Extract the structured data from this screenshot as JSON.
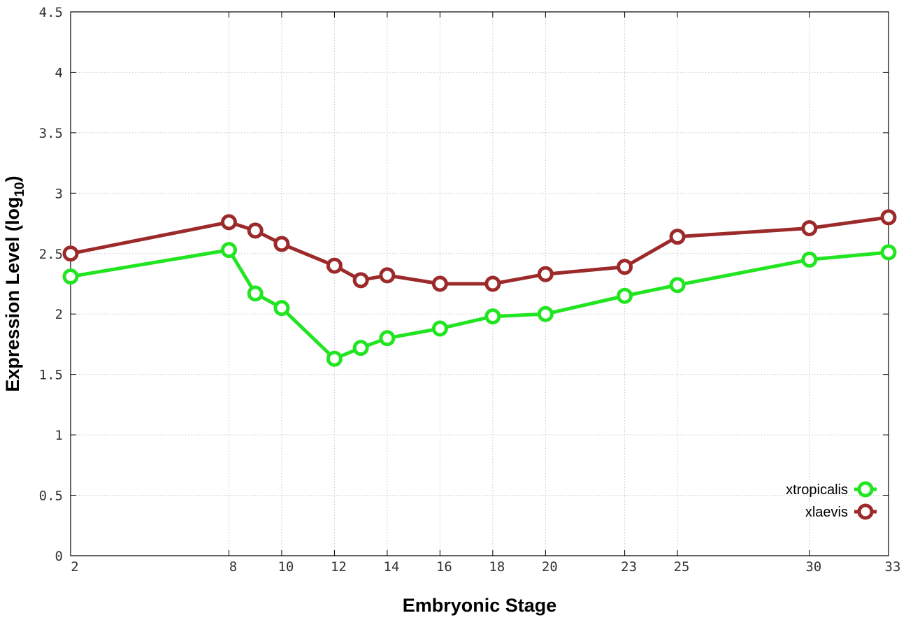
{
  "chart_data": {
    "type": "line",
    "title": "",
    "xlabel": "Embryonic Stage",
    "ylabel_main": "Expression Level (log",
    "ylabel_sub": "10",
    "ylabel_close": ")",
    "x_ticks": [
      2,
      8,
      10,
      12,
      14,
      16,
      18,
      20,
      23,
      25,
      30,
      33
    ],
    "x_tick_labels": [
      "2",
      "8",
      "10",
      "12",
      "14",
      "16",
      "18",
      "20",
      "23",
      "25",
      "30",
      "33"
    ],
    "y_ticks": [
      0,
      0.5,
      1,
      1.5,
      2,
      2.5,
      3,
      3.5,
      4,
      4.5
    ],
    "y_tick_labels": [
      "0",
      "0.5",
      "1",
      "1.5",
      "2",
      "2.5",
      "3",
      "3.5",
      "4",
      "4.5"
    ],
    "xlim": [
      2,
      33
    ],
    "ylim": [
      0,
      4.5
    ],
    "grid": true,
    "legend_position": "bottom-right",
    "x": [
      2,
      8,
      9,
      10,
      12,
      13,
      14,
      16,
      18,
      20,
      23,
      25,
      30,
      33
    ],
    "series": [
      {
        "name": "xtropicalis",
        "color": "#22e522",
        "values": [
          2.31,
          2.53,
          2.17,
          2.05,
          1.63,
          1.72,
          1.8,
          1.88,
          1.98,
          2.0,
          2.15,
          2.24,
          2.45,
          2.51
        ]
      },
      {
        "name": "xlaevis",
        "color": "#9c2a2a",
        "values": [
          2.5,
          2.76,
          2.69,
          2.58,
          2.4,
          2.28,
          2.32,
          2.25,
          2.25,
          2.33,
          2.39,
          2.64,
          2.71,
          2.8
        ]
      }
    ]
  }
}
